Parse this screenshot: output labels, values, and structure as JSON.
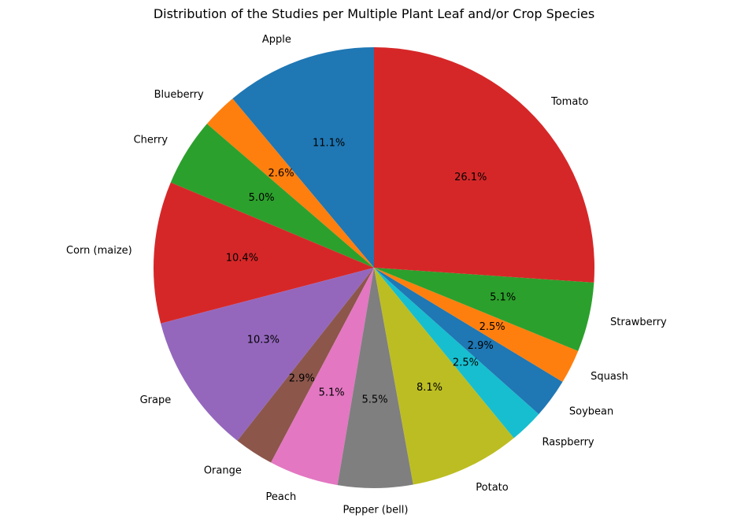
{
  "chart_data": {
    "type": "pie",
    "title": "Distribution of the Studies per Multiple Plant Leaf and/or Crop Species",
    "start_angle_deg": 90,
    "direction": "counterclockwise",
    "autopct_format": "{:.1f}%",
    "slices": [
      {
        "label": "Apple",
        "value": 11.1,
        "color": "#1f77b4"
      },
      {
        "label": "Blueberry",
        "value": 2.6,
        "color": "#ff7f0e"
      },
      {
        "label": "Cherry",
        "value": 5.0,
        "color": "#2ca02c"
      },
      {
        "label": "Corn (maize)",
        "value": 10.4,
        "color": "#d62728"
      },
      {
        "label": "Grape",
        "value": 10.3,
        "color": "#9467bd"
      },
      {
        "label": "Orange",
        "value": 2.9,
        "color": "#8c564b"
      },
      {
        "label": "Peach",
        "value": 5.1,
        "color": "#e377c2"
      },
      {
        "label": "Pepper (bell)",
        "value": 5.5,
        "color": "#7f7f7f"
      },
      {
        "label": "Potato",
        "value": 8.1,
        "color": "#bcbd22"
      },
      {
        "label": "Raspberry",
        "value": 2.5,
        "color": "#17becf"
      },
      {
        "label": "Soybean",
        "value": 2.9,
        "color": "#1f77b4"
      },
      {
        "label": "Squash",
        "value": 2.5,
        "color": "#ff7f0e"
      },
      {
        "label": "Strawberry",
        "value": 5.1,
        "color": "#2ca02c"
      },
      {
        "label": "Tomato",
        "value": 26.1,
        "color": "#d62728"
      }
    ]
  }
}
